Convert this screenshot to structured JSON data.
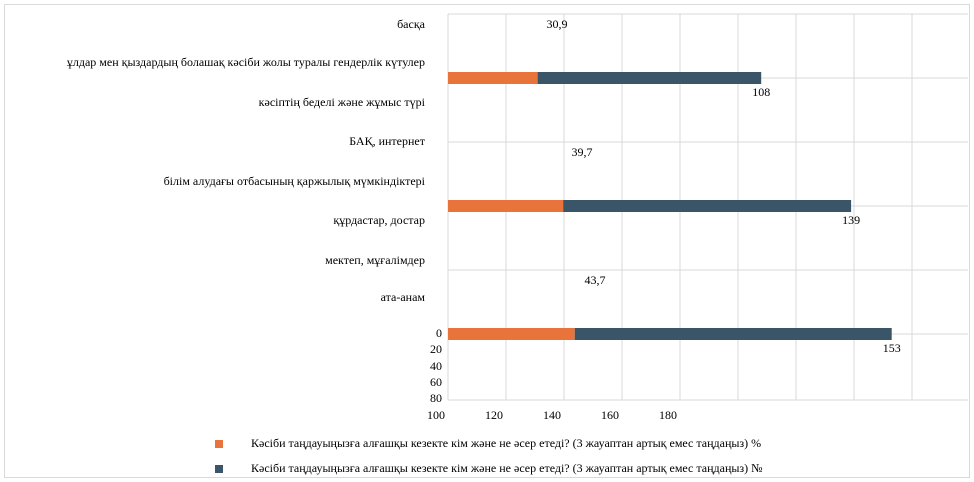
{
  "chart_data": {
    "type": "bar",
    "orientation": "horizontal",
    "stacked": true,
    "title": "",
    "categories": [
      "ата-анам",
      "мектеп, мұғалімдер",
      "құрдастар, достар",
      "білім алудағы отбасының қаржылық мүмкіндіктері",
      "БАҚ, интернет",
      "кәсіптің беделі және жұмыс түрі",
      "ұлдар мен қыздардың болашақ кәсіби жолы туралы гендерлік күтулер",
      "басқа"
    ],
    "series": [
      {
        "name": "Кәсіби таңдауыңызға алғашқы кезекте кім және не әсер етеді? (3 жауаптан артық емес таңдаңыз) %",
        "color": "#E8743B",
        "values": [
          43.7,
          null,
          39.7,
          null,
          30.9,
          null,
          null,
          null
        ],
        "labels": [
          "43,7",
          "",
          "39,7",
          "",
          "30,9",
          "",
          "",
          ""
        ]
      },
      {
        "name": "Кәсіби таңдауыңызға алғашқы кезекте кім және не әсер етеді? (3 жауаптан артық емес таңдаңыз) №",
        "color": "#3A5568",
        "values": [
          153,
          null,
          139,
          null,
          108,
          null,
          null,
          null
        ],
        "labels": [
          "153",
          "",
          "139",
          "",
          "108",
          "",
          "",
          ""
        ]
      }
    ],
    "x_tick_labels": [
      "100",
      "120",
      "140",
      "160",
      "180"
    ],
    "y_tick_labels_extra": [
      "0",
      "20",
      "40",
      "60",
      "80"
    ],
    "grid": true,
    "legend_position": "bottom"
  }
}
